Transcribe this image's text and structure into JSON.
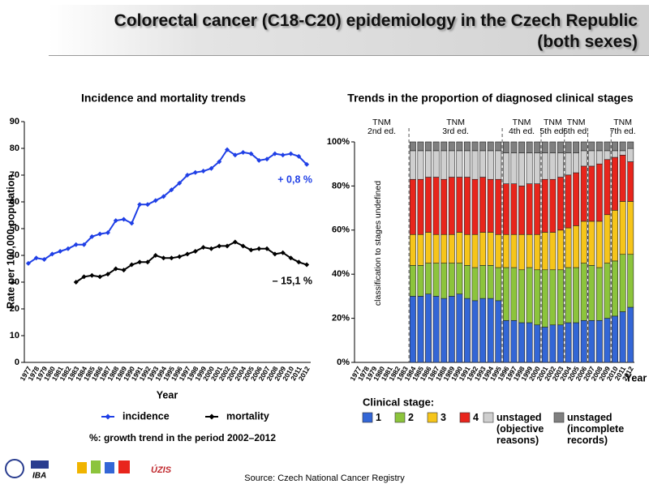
{
  "header": {
    "title": [
      "Colorectal cancer (C18-C20) epidemiology in the Czech Republic",
      "(both sexes)"
    ]
  },
  "chart_data": [
    {
      "type": "line",
      "title": "Incidence and mortality trends",
      "x_label": "Year",
      "y_label": "Rate per 100,000 population",
      "categories": [
        "1977",
        "1978",
        "1979",
        "1980",
        "1981",
        "1982",
        "1983",
        "1984",
        "1985",
        "1986",
        "1987",
        "1988",
        "1989",
        "1990",
        "1991",
        "1992",
        "1993",
        "1994",
        "1995",
        "1996",
        "1997",
        "1998",
        "1999",
        "2000",
        "2001",
        "2002",
        "2003",
        "2004",
        "2005",
        "2006",
        "2007",
        "2008",
        "2009",
        "2010",
        "2011",
        "2012"
      ],
      "ylim": [
        0,
        90
      ],
      "yticks": [
        0,
        10,
        20,
        30,
        40,
        50,
        60,
        70,
        80,
        90
      ],
      "series": [
        {
          "name": "incidence",
          "color": "#1f3fe6",
          "values": [
            37,
            39,
            38.5,
            40.5,
            41.5,
            42.5,
            44,
            44,
            47,
            48,
            48.5,
            53,
            53.5,
            52,
            59,
            59,
            60.5,
            62,
            64.5,
            67,
            70,
            71,
            71.5,
            72.5,
            75,
            79.5,
            77.5,
            78.5,
            78,
            75.5,
            76,
            78,
            77.5,
            78,
            77,
            74
          ]
        },
        {
          "name": "mortality",
          "color": "#000000",
          "values": [
            null,
            null,
            null,
            null,
            null,
            null,
            30,
            32,
            32.5,
            32,
            33,
            35,
            34.5,
            36.5,
            37.5,
            37.5,
            40,
            39,
            39,
            39.5,
            40.5,
            41.5,
            43,
            42.5,
            43.5,
            43.5,
            45,
            43.5,
            42,
            42.5,
            42.5,
            40.5,
            41,
            39,
            37.5,
            36.5
          ]
        }
      ],
      "annotations": [
        {
          "text": "+ 0,8 %",
          "color": "#1f3fe6"
        },
        {
          "text": "– 15,1 %",
          "color": "#000000"
        }
      ],
      "note": "%: growth trend in the period 2002–2012"
    },
    {
      "type": "stacked_bar",
      "title": "Trends in the proportion of diagnosed clinical stages",
      "x_label": "Year",
      "categories": [
        "1977",
        "1978",
        "1979",
        "1980",
        "1981",
        "1982",
        "1983",
        "1984",
        "1985",
        "1986",
        "1987",
        "1988",
        "1989",
        "1990",
        "1991",
        "1992",
        "1993",
        "1994",
        "1995",
        "1996",
        "1997",
        "1998",
        "1999",
        "2000",
        "2001",
        "2002",
        "2003",
        "2004",
        "2005",
        "2006",
        "2007",
        "2008",
        "2009",
        "2010",
        "2011",
        "2012"
      ],
      "ylim": [
        0,
        100
      ],
      "yticks": [
        {
          "value": 0,
          "label": "0%"
        },
        {
          "value": 20,
          "label": "20%"
        },
        {
          "value": 40,
          "label": "40%"
        },
        {
          "value": 60,
          "label": "60%"
        },
        {
          "value": 80,
          "label": "80%"
        },
        {
          "value": 100,
          "label": "100%"
        }
      ],
      "legend_title": "Clinical stage:",
      "series": [
        {
          "name": "1",
          "color": "#3366d6",
          "values": [
            null,
            null,
            null,
            null,
            null,
            null,
            null,
            30,
            30,
            31,
            30,
            29,
            30,
            31,
            29,
            28,
            29,
            29,
            28,
            19,
            19,
            18,
            18,
            17,
            16,
            17,
            17,
            18,
            18,
            19,
            19,
            19,
            20,
            21,
            23,
            25
          ]
        },
        {
          "name": "2",
          "color": "#8cc43c",
          "values": [
            null,
            null,
            null,
            null,
            null,
            null,
            null,
            14,
            14,
            14,
            15,
            16,
            15,
            14,
            15,
            15,
            15,
            15,
            15,
            24,
            24,
            24,
            25,
            25,
            26,
            25,
            25,
            25,
            25,
            26,
            25,
            24,
            25,
            25,
            26,
            24
          ]
        },
        {
          "name": "3",
          "color": "#f6c51a",
          "values": [
            null,
            null,
            null,
            null,
            null,
            null,
            null,
            14,
            14,
            14,
            13,
            13,
            13,
            14,
            14,
            15,
            15,
            15,
            15,
            15,
            15,
            16,
            15,
            16,
            17,
            17,
            18,
            18,
            19,
            19,
            20,
            21,
            22,
            23,
            24,
            24
          ]
        },
        {
          "name": "4",
          "color": "#e8251c",
          "values": [
            null,
            null,
            null,
            null,
            null,
            null,
            null,
            25,
            25,
            25,
            26,
            25,
            26,
            25,
            26,
            25,
            25,
            24,
            25,
            23,
            23,
            22,
            23,
            23,
            24,
            24,
            24,
            24,
            24,
            25,
            25,
            26,
            25,
            24,
            21,
            18
          ]
        },
        {
          "name": "unstaged (objective reasons)",
          "color": "#cfcfcf",
          "values": [
            null,
            null,
            null,
            null,
            null,
            null,
            null,
            13,
            13,
            12,
            12,
            13,
            12,
            12,
            12,
            13,
            12,
            13,
            13,
            14,
            14,
            15,
            14,
            14,
            12,
            12,
            11,
            10,
            9,
            7,
            7,
            6,
            4,
            3,
            2,
            6
          ]
        },
        {
          "name": "unstaged (incomplete records)",
          "color": "#7f7f7f",
          "values": [
            null,
            null,
            null,
            null,
            null,
            null,
            null,
            4,
            4,
            4,
            4,
            4,
            4,
            4,
            4,
            4,
            4,
            4,
            4,
            5,
            5,
            5,
            5,
            5,
            5,
            5,
            5,
            5,
            5,
            4,
            4,
            4,
            4,
            4,
            4,
            3
          ]
        }
      ],
      "annotations": [
        "TNM 2nd ed.",
        "TNM 3rd ed.",
        "TNM 4th ed.",
        "TNM 5th ed.",
        "TNM 6th ed.",
        "TNM 7th ed."
      ],
      "undefined_note": "classification to stages undefined"
    }
  ],
  "footer": {
    "source": "Source: Czech National Cancer Registry",
    "logos": [
      "IBA",
      "ÚZIS"
    ]
  }
}
